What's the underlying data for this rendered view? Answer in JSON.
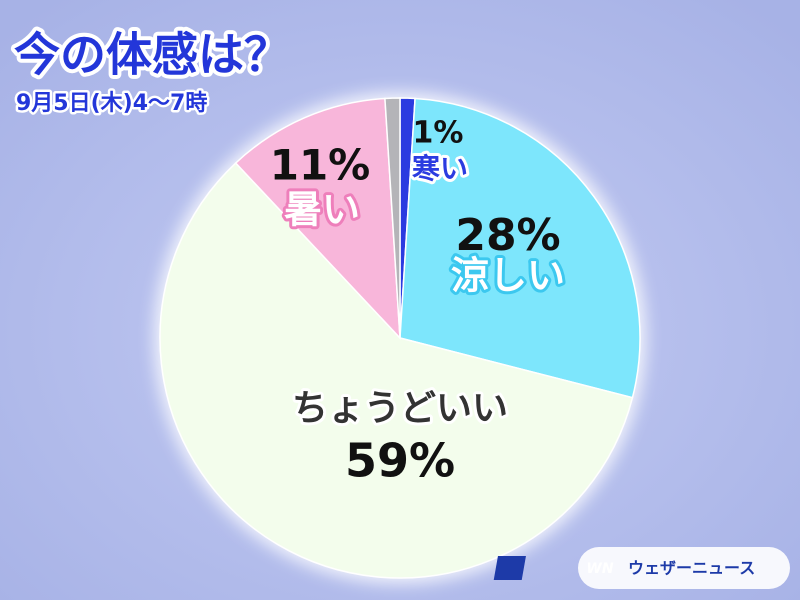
{
  "chart_data": {
    "type": "pie",
    "title": "今の体感は？",
    "subtitle": "9月5日(木)4〜7時",
    "categories": [
      "寒い",
      "涼しい",
      "ちょうどいい",
      "暑い",
      null
    ],
    "values": [
      1,
      28,
      59,
      11,
      1
    ],
    "value_labels": [
      "1%",
      "28%",
      "59%",
      "11%",
      null
    ],
    "colors": [
      "#2b3be0",
      "#7de6fc",
      "#f3fdec",
      "#f8b6da",
      "#b4b4b8"
    ]
  },
  "brand": {
    "logo": "WN",
    "name": "ウェザーニュース"
  }
}
